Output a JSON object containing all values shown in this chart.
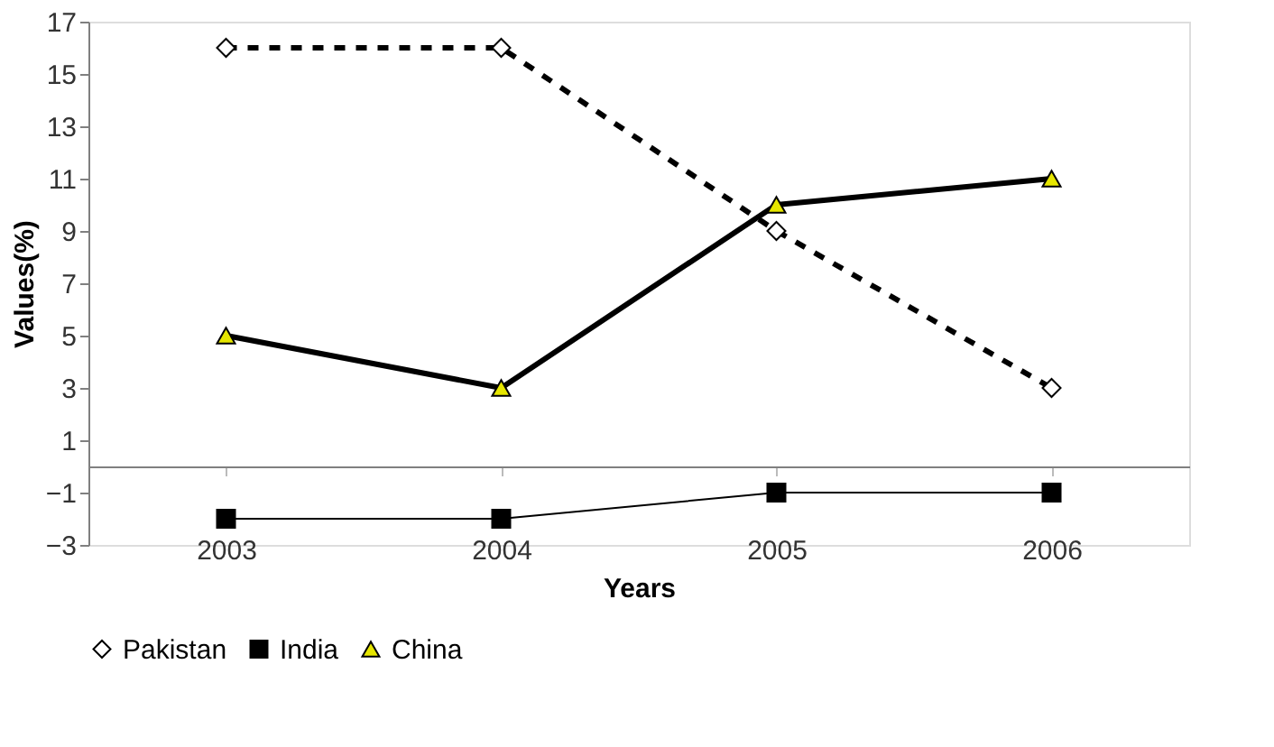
{
  "chart_data": {
    "type": "line",
    "xlabel": "Years",
    "ylabel": "Values(%)",
    "categories": [
      "2003",
      "2004",
      "2005",
      "2006"
    ],
    "series": [
      {
        "name": "Pakistan",
        "color": "#000000",
        "values": [
          16,
          16,
          9,
          3
        ],
        "line_style": "dashed",
        "marker": "diamond"
      },
      {
        "name": "India",
        "color": "#000000",
        "values": [
          -2,
          -2,
          -1,
          -1
        ],
        "line_style": "solid",
        "marker": "square"
      },
      {
        "name": "China",
        "color": "#000000",
        "values": [
          5,
          3,
          10,
          11
        ],
        "line_style": "solid",
        "marker": "triangle"
      }
    ],
    "ylim": [
      -3,
      17
    ],
    "yticks": [
      -3,
      -1,
      1,
      3,
      5,
      7,
      9,
      11,
      13,
      15,
      17
    ],
    "grid": false,
    "legend": "bottom"
  }
}
